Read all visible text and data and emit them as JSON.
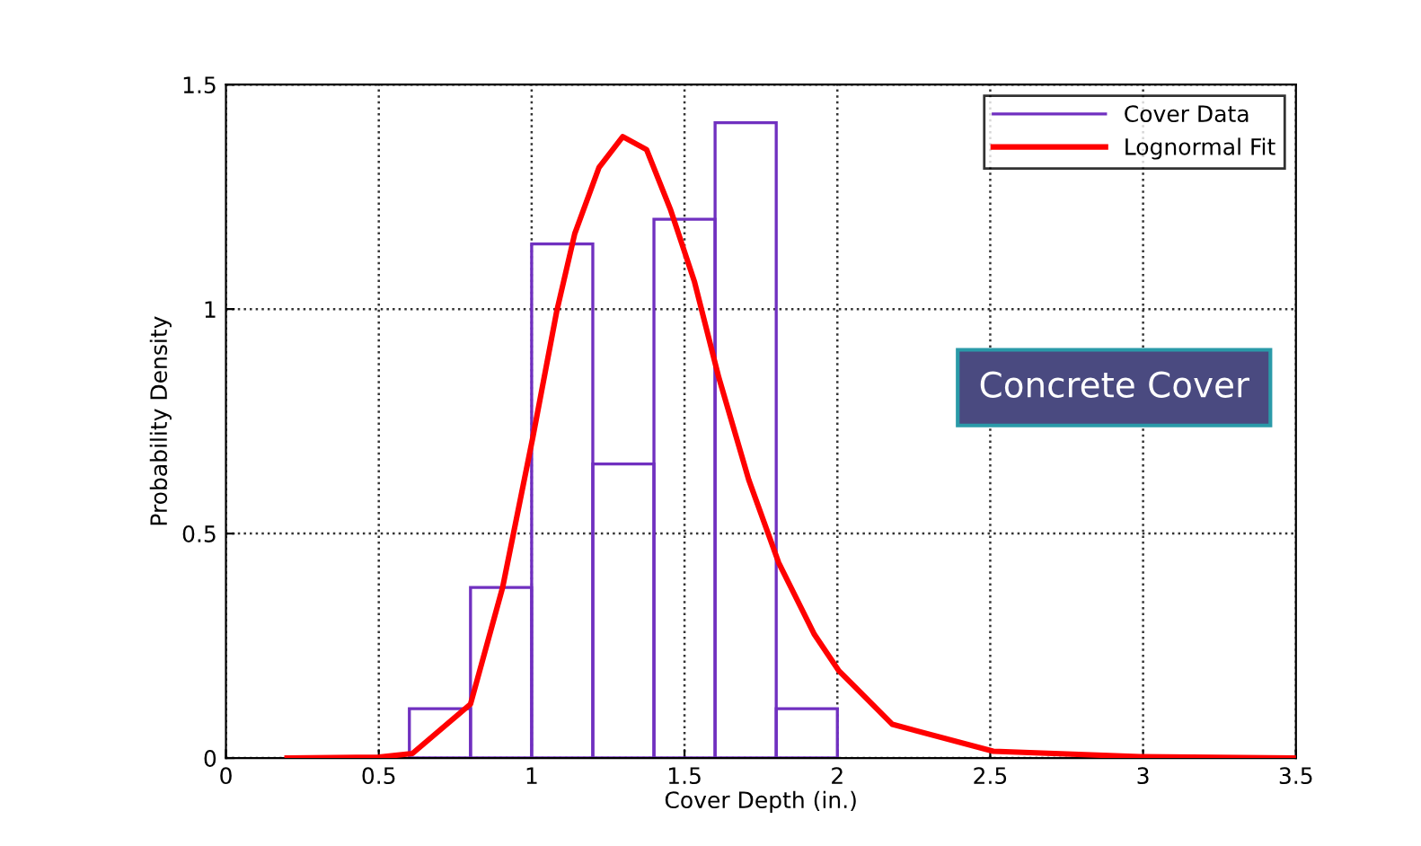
{
  "chart_data": {
    "type": "histogram",
    "xlabel": "Cover Depth (in.)",
    "ylabel": "Probability Density",
    "xlim": [
      0,
      3.5
    ],
    "ylim": [
      0,
      1.5
    ],
    "xticks": [
      0,
      0.5,
      1,
      1.5,
      2,
      2.5,
      3,
      3.5
    ],
    "yticks": [
      0,
      0.5,
      1,
      1.5
    ],
    "grid": true,
    "legend": "top right",
    "annotations": [
      "Concrete Cover"
    ],
    "series": [
      {
        "name": "Cover Data",
        "type": "histogram",
        "color": "#7030c0",
        "bins": [
          0.6,
          0.8,
          1.0,
          1.2,
          1.4,
          1.6,
          1.8,
          2.0
        ],
        "values": [
          0.11,
          0.38,
          1.145,
          0.655,
          1.2,
          1.415,
          0.11
        ]
      },
      {
        "name": "Lognormal Fit",
        "type": "line",
        "color": "#ff0000",
        "x": [
          0.2,
          0.5,
          0.61,
          0.8,
          0.905,
          1.004,
          1.082,
          1.141,
          1.22,
          1.298,
          1.376,
          1.455,
          1.533,
          1.612,
          1.71,
          1.808,
          1.925,
          2.004,
          2.18,
          2.51,
          2.99,
          3.5
        ],
        "values": [
          0,
          0.002,
          0.01,
          0.12,
          0.38,
          0.715,
          0.995,
          1.168,
          1.315,
          1.384,
          1.355,
          1.22,
          1.06,
          0.848,
          0.62,
          0.435,
          0.275,
          0.195,
          0.075,
          0.015,
          0.003,
          0
        ]
      }
    ]
  }
}
